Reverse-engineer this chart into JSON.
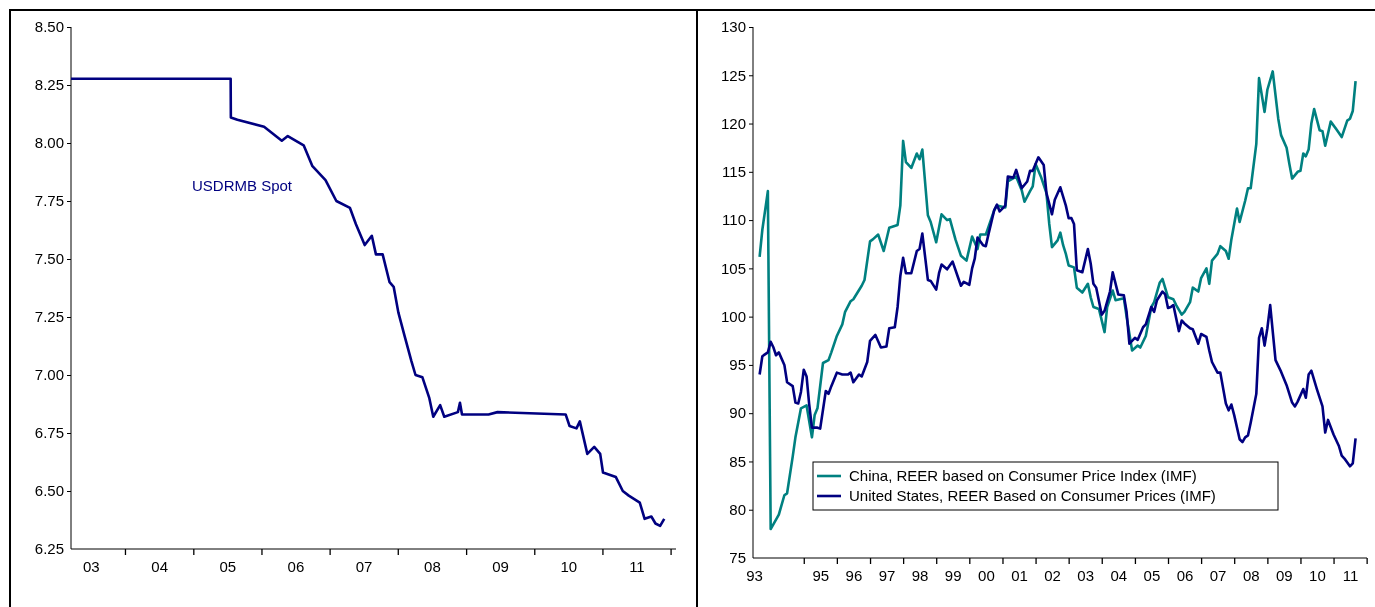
{
  "chart_data": [
    {
      "type": "line",
      "xlim": [
        "2003-03-18",
        "2012-01-30"
      ],
      "ylim": [
        6.25,
        8.5
      ],
      "xticks": [
        {
          "value": "2003-07-02",
          "label": "03"
        },
        {
          "value": "2004-01-01",
          "label": null
        },
        {
          "value": "2004-07-02",
          "label": "04"
        },
        {
          "value": "2005-01-01",
          "label": null
        },
        {
          "value": "2005-07-02",
          "label": "05"
        },
        {
          "value": "2006-01-01",
          "label": null
        },
        {
          "value": "2006-07-02",
          "label": "06"
        },
        {
          "value": "2007-01-01",
          "label": null
        },
        {
          "value": "2007-07-02",
          "label": "07"
        },
        {
          "value": "2008-01-01",
          "label": null
        },
        {
          "value": "2008-07-02",
          "label": "08"
        },
        {
          "value": "2009-01-01",
          "label": null
        },
        {
          "value": "2009-07-02",
          "label": "09"
        },
        {
          "value": "2010-01-01",
          "label": null
        },
        {
          "value": "2010-07-02",
          "label": "10"
        },
        {
          "value": "2011-01-01",
          "label": null
        },
        {
          "value": "2011-07-02",
          "label": "11"
        },
        {
          "value": "2012-01-01",
          "label": null
        }
      ],
      "yticks": [
        {
          "value": 6.25,
          "label": "6.25"
        },
        {
          "value": 6.5,
          "label": "6.50"
        },
        {
          "value": 6.75,
          "label": "6.75"
        },
        {
          "value": 7,
          "label": "7.00"
        },
        {
          "value": 7.25,
          "label": "7.25"
        },
        {
          "value": 7.5,
          "label": "7.50"
        },
        {
          "value": 7.75,
          "label": "7.75"
        },
        {
          "value": 8,
          "label": "8.00"
        },
        {
          "value": 8.25,
          "label": "8.25"
        },
        {
          "value": 8.5,
          "label": "8.50"
        }
      ],
      "legend": false,
      "series": [
        {
          "name": "USDRMB Spot",
          "color": "#000080",
          "x": [
            "2003-03-18",
            "2005-07-20",
            "2005-07-21",
            "2005-08-25",
            "2006-01-15",
            "2006-04-20",
            "2006-05-22",
            "2006-08-15",
            "2006-10-01",
            "2006-12-10",
            "2007-02-06",
            "2007-04-20",
            "2007-05-22",
            "2007-07-08",
            "2007-08-15",
            "2007-09-06",
            "2007-10-12",
            "2007-11-18",
            "2007-12-10",
            "2008-01-04",
            "2008-02-06",
            "2008-03-14",
            "2008-04-05",
            "2008-05-12",
            "2008-06-18",
            "2008-07-09",
            "2008-08-15",
            "2008-09-06",
            "2008-11-18",
            "2008-11-29",
            "2008-12-10",
            "2009-05-01",
            "2009-06-18",
            "2010-06-18",
            "2010-07-09",
            "2010-08-15",
            "2010-09-02",
            "2010-10-12",
            "2010-11-18",
            "2010-12-20",
            "2011-01-04",
            "2011-03-14",
            "2011-04-20",
            "2011-05-22",
            "2011-07-20",
            "2011-08-15",
            "2011-09-20",
            "2011-10-12",
            "2011-11-06",
            "2011-11-28"
          ],
          "values": [
            8.277,
            8.277,
            8.11,
            8.1,
            8.07,
            8.01,
            8.03,
            7.99,
            7.9,
            7.84,
            7.75,
            7.72,
            7.65,
            7.56,
            7.6,
            7.52,
            7.52,
            7.4,
            7.38,
            7.27,
            7.17,
            7.06,
            7.0,
            6.99,
            6.9,
            6.82,
            6.87,
            6.82,
            6.84,
            6.88,
            6.83,
            6.83,
            6.84,
            6.83,
            6.78,
            6.77,
            6.8,
            6.66,
            6.69,
            6.66,
            6.58,
            6.56,
            6.5,
            6.48,
            6.45,
            6.38,
            6.39,
            6.36,
            6.35,
            6.38
          ]
        }
      ]
    },
    {
      "type": "line",
      "xlim": [
        "1993-06-20",
        "2012-01-05"
      ],
      "ylim": [
        75,
        130
      ],
      "xticks": [
        {
          "value": "1993-07-02",
          "label": "93"
        },
        {
          "value": "1995-01-01",
          "label": null
        },
        {
          "value": "1995-07-02",
          "label": "95"
        },
        {
          "value": "1996-01-01",
          "label": null
        },
        {
          "value": "1996-07-02",
          "label": "96"
        },
        {
          "value": "1997-01-01",
          "label": null
        },
        {
          "value": "1997-07-02",
          "label": "97"
        },
        {
          "value": "1998-01-01",
          "label": null
        },
        {
          "value": "1998-07-02",
          "label": "98"
        },
        {
          "value": "1999-01-01",
          "label": null
        },
        {
          "value": "1999-07-02",
          "label": "99"
        },
        {
          "value": "2000-01-01",
          "label": null
        },
        {
          "value": "2000-07-02",
          "label": "00"
        },
        {
          "value": "2001-01-01",
          "label": null
        },
        {
          "value": "2001-07-02",
          "label": "01"
        },
        {
          "value": "2002-01-01",
          "label": null
        },
        {
          "value": "2002-07-02",
          "label": "02"
        },
        {
          "value": "2003-01-01",
          "label": null
        },
        {
          "value": "2003-07-02",
          "label": "03"
        },
        {
          "value": "2004-01-01",
          "label": null
        },
        {
          "value": "2004-07-02",
          "label": "04"
        },
        {
          "value": "2005-01-01",
          "label": null
        },
        {
          "value": "2005-07-02",
          "label": "05"
        },
        {
          "value": "2006-01-01",
          "label": null
        },
        {
          "value": "2006-07-02",
          "label": "06"
        },
        {
          "value": "2007-01-01",
          "label": null
        },
        {
          "value": "2007-07-02",
          "label": "07"
        },
        {
          "value": "2008-01-01",
          "label": null
        },
        {
          "value": "2008-07-02",
          "label": "08"
        },
        {
          "value": "2009-01-01",
          "label": null
        },
        {
          "value": "2009-07-02",
          "label": "09"
        },
        {
          "value": "2010-01-01",
          "label": null
        },
        {
          "value": "2010-07-02",
          "label": "10"
        },
        {
          "value": "2011-01-01",
          "label": null
        },
        {
          "value": "2011-07-02",
          "label": "11"
        },
        {
          "value": "2012-01-01",
          "label": null
        }
      ],
      "yticks": [
        75,
        80,
        85,
        90,
        95,
        100,
        105,
        110,
        115,
        120,
        125,
        130
      ],
      "legend": "bottom",
      "series": [
        {
          "name": "China, REER based on Consumer Price Index (IMF)",
          "color": "#008080",
          "x": [
            "1993-09",
            "1993-10",
            "1993-12",
            "1994-01",
            "1994-02",
            "1994-04",
            "1994-06",
            "1994-07",
            "1994-09",
            "1994-10",
            "1994-12",
            "1995-02",
            "1995-04",
            "1995-05",
            "1995-06",
            "1995-08",
            "1995-10",
            "1995-11",
            "1996-01",
            "1996-03",
            "1996-04",
            "1996-06",
            "1996-07",
            "1996-10",
            "1996-11",
            "1997-01",
            "1997-02",
            "1997-04",
            "1997-06",
            "1997-08",
            "1997-11",
            "1997-12",
            "1998-01",
            "1998-02",
            "1998-04",
            "1998-06",
            "1998-07",
            "1998-08",
            "1998-10",
            "1998-11",
            "1999-01",
            "1999-03",
            "1999-05",
            "1999-06",
            "1999-08",
            "1999-10",
            "1999-12",
            "2000-02",
            "2000-04",
            "2000-05",
            "2000-07",
            "2000-10",
            "2000-11",
            "2001-02",
            "2001-03",
            "2001-06",
            "2001-08",
            "2001-09",
            "2001-11",
            "2001-12",
            "2002-01",
            "2002-03",
            "2002-05",
            "2002-06",
            "2002-07",
            "2002-09",
            "2002-10",
            "2002-11",
            "2002-12",
            "2003-01",
            "2003-03",
            "2003-04",
            "2003-06",
            "2003-08",
            "2003-09",
            "2003-10",
            "2003-12",
            "2004-02",
            "2004-03",
            "2004-05",
            "2004-06",
            "2004-09",
            "2004-10",
            "2004-12",
            "2005-02",
            "2005-03",
            "2005-05",
            "2005-07",
            "2005-08",
            "2005-10",
            "2005-11",
            "2006-01",
            "2006-03",
            "2006-04",
            "2006-06",
            "2006-07",
            "2006-09",
            "2006-10",
            "2006-12",
            "2007-01",
            "2007-03",
            "2007-04",
            "2007-05",
            "2007-07",
            "2007-08",
            "2007-10",
            "2007-11",
            "2007-12",
            "2008-02",
            "2008-03",
            "2008-05",
            "2008-06",
            "2008-07",
            "2008-09",
            "2008-10",
            "2008-12",
            "2009-01",
            "2009-03",
            "2009-05",
            "2009-06",
            "2009-08",
            "2009-09",
            "2009-10",
            "2009-12",
            "2010-01",
            "2010-02",
            "2010-03",
            "2010-04",
            "2010-05",
            "2010-06",
            "2010-08",
            "2010-09",
            "2010-10",
            "2010-12",
            "2011-02",
            "2011-04",
            "2011-06",
            "2011-07",
            "2011-08",
            "2011-09"
          ],
          "values": [
            106.2,
            109,
            113,
            78,
            78.5,
            79.5,
            81.5,
            81.7,
            85.5,
            87.5,
            90.5,
            90.8,
            87.5,
            89.8,
            90.5,
            95.2,
            95.5,
            96.3,
            98,
            99.2,
            100.5,
            101.6,
            101.8,
            103.2,
            103.8,
            107.8,
            108,
            108.5,
            106.8,
            109.2,
            109.5,
            111.5,
            118.2,
            116,
            115.4,
            116.9,
            116.3,
            117.3,
            110.5,
            109.8,
            107.7,
            110.6,
            110,
            110.1,
            108,
            106.3,
            105.8,
            108.3,
            107,
            108.5,
            108.5,
            111,
            111.5,
            111.3,
            114,
            114.5,
            113.1,
            111.9,
            113,
            113.5,
            115.8,
            114.5,
            112.8,
            109.6,
            107.2,
            107.9,
            108.7,
            107.4,
            106.5,
            105.3,
            105.1,
            103,
            102.5,
            103.4,
            102,
            101,
            100.8,
            98.4,
            101,
            102.7,
            101.7,
            101.9,
            100,
            96.5,
            97,
            96.8,
            98,
            101,
            101.5,
            103.5,
            103.9,
            102,
            101.8,
            101.2,
            100.2,
            100.5,
            101.5,
            103,
            102.6,
            104,
            105,
            103.4,
            105.8,
            106.5,
            107.3,
            106.8,
            106,
            108,
            111.2,
            109.8,
            112,
            113.3,
            113.3,
            117.9,
            124.7,
            121.2,
            123.5,
            125.4,
            120.5,
            118.8,
            117.5,
            115.8,
            114.3,
            115,
            115.1,
            116.9,
            116.6,
            117.3,
            120,
            121.5,
            119.3,
            119.2,
            117.7,
            120.2,
            119.4,
            118.6,
            120.3,
            120.5,
            121.3,
            124.4
          ]
        },
        {
          "name": "United States, REER Based on Consumer Prices (IMF)",
          "color": "#000080",
          "x": [
            "1993-09",
            "1993-10",
            "1993-12",
            "1994-01",
            "1994-02",
            "1994-03",
            "1994-04",
            "1994-06",
            "1994-07",
            "1994-09",
            "1994-10",
            "1994-11",
            "1994-12",
            "1995-01",
            "1995-02",
            "1995-03",
            "1995-04",
            "1995-06",
            "1995-07",
            "1995-09",
            "1995-10",
            "1995-11",
            "1996-01",
            "1996-03",
            "1996-05",
            "1996-06",
            "1996-07",
            "1996-09",
            "1996-10",
            "1996-12",
            "1997-01",
            "1997-03",
            "1997-05",
            "1997-07",
            "1997-08",
            "1997-10",
            "1997-11",
            "1997-12",
            "1998-01",
            "1998-02",
            "1998-04",
            "1998-06",
            "1998-07",
            "1998-08",
            "1998-10",
            "1998-11",
            "1999-01",
            "1999-02",
            "1999-03",
            "1999-05",
            "1999-07",
            "1999-09",
            "1999-10",
            "1999-11",
            "2000-01",
            "2000-02",
            "2000-03",
            "2000-04",
            "2000-06",
            "2000-07",
            "2000-08",
            "2000-10",
            "2000-11",
            "2000-12",
            "2001-02",
            "2001-03",
            "2001-05",
            "2001-06",
            "2001-08",
            "2001-10",
            "2001-11",
            "2001-12",
            "2002-02",
            "2002-04",
            "2002-05",
            "2002-07",
            "2002-08",
            "2002-10",
            "2002-12",
            "2003-01",
            "2003-02",
            "2003-03",
            "2003-04",
            "2003-06",
            "2003-08",
            "2003-09",
            "2003-10",
            "2003-11",
            "2004-01",
            "2004-02",
            "2004-04",
            "2004-05",
            "2004-07",
            "2004-09",
            "2004-10",
            "2004-11",
            "2005-01",
            "2005-02",
            "2005-04",
            "2005-05",
            "2005-07",
            "2005-08",
            "2005-09",
            "2005-11",
            "2005-12",
            "2006-01",
            "2006-02",
            "2006-03",
            "2006-05",
            "2006-06",
            "2006-07",
            "2006-09",
            "2006-10",
            "2006-12",
            "2007-01",
            "2007-03",
            "2007-04",
            "2007-05",
            "2007-07",
            "2007-08",
            "2007-10",
            "2007-11",
            "2007-12",
            "2008-01",
            "2008-03",
            "2008-04",
            "2008-05",
            "2008-06",
            "2008-07",
            "2008-09",
            "2008-10",
            "2008-11",
            "2008-12",
            "2009-01",
            "2009-02",
            "2009-04",
            "2009-06",
            "2009-08",
            "2009-10",
            "2009-11",
            "2009-12",
            "2010-02",
            "2010-03",
            "2010-04",
            "2010-05",
            "2010-07",
            "2010-09",
            "2010-10",
            "2010-11",
            "2011-01",
            "2011-03",
            "2011-04",
            "2011-05",
            "2011-07",
            "2011-08",
            "2011-09"
          ],
          "values": [
            94,
            95.9,
            96.3,
            97.4,
            96.8,
            96,
            96.3,
            95,
            93.2,
            92.8,
            91.1,
            91,
            92.2,
            94.5,
            93.8,
            91,
            88.5,
            88.5,
            88.4,
            92.3,
            92,
            92.8,
            94.2,
            94,
            94,
            94.2,
            93.2,
            94,
            93.8,
            95.3,
            97.5,
            98.1,
            96.8,
            96.9,
            98.8,
            98.9,
            101,
            104.2,
            106.1,
            104.5,
            104.5,
            106.8,
            107,
            108.6,
            103.8,
            103.7,
            102.8,
            104.5,
            105.4,
            104.9,
            105.7,
            104,
            103.2,
            103.6,
            103.3,
            105,
            106,
            108.2,
            107.4,
            107.3,
            108.6,
            111,
            111.6,
            110.9,
            111.5,
            114.5,
            114.4,
            115.2,
            113.3,
            114,
            115.1,
            115.1,
            116.5,
            115.7,
            112.8,
            110.6,
            112.1,
            113.4,
            111.5,
            110.2,
            110.2,
            109.6,
            104.8,
            104.6,
            107,
            105.5,
            103.4,
            103,
            100.2,
            100.6,
            102.6,
            104.6,
            102.3,
            102.2,
            100.5,
            97.2,
            97.8,
            97.6,
            98.9,
            99.2,
            101,
            100.5,
            101.7,
            102.6,
            102.3,
            100.9,
            101,
            101.2,
            98.5,
            99.6,
            99.3,
            98.8,
            98.7,
            97.2,
            98.2,
            97.9,
            96.5,
            95.3,
            94.2,
            94.2,
            91,
            90.3,
            90.9,
            89.8,
            87.3,
            87,
            87.5,
            87.7,
            89,
            92,
            97.8,
            98.8,
            97,
            98.8,
            101.2,
            95.5,
            94.3,
            92.9,
            91.1,
            90.7,
            91.2,
            92.5,
            91.6,
            94,
            94.4,
            92.5,
            90.7,
            88,
            89.3,
            87.8,
            86.6,
            85.6,
            85.3,
            84.5,
            84.8,
            87.4
          ]
        }
      ]
    }
  ]
}
